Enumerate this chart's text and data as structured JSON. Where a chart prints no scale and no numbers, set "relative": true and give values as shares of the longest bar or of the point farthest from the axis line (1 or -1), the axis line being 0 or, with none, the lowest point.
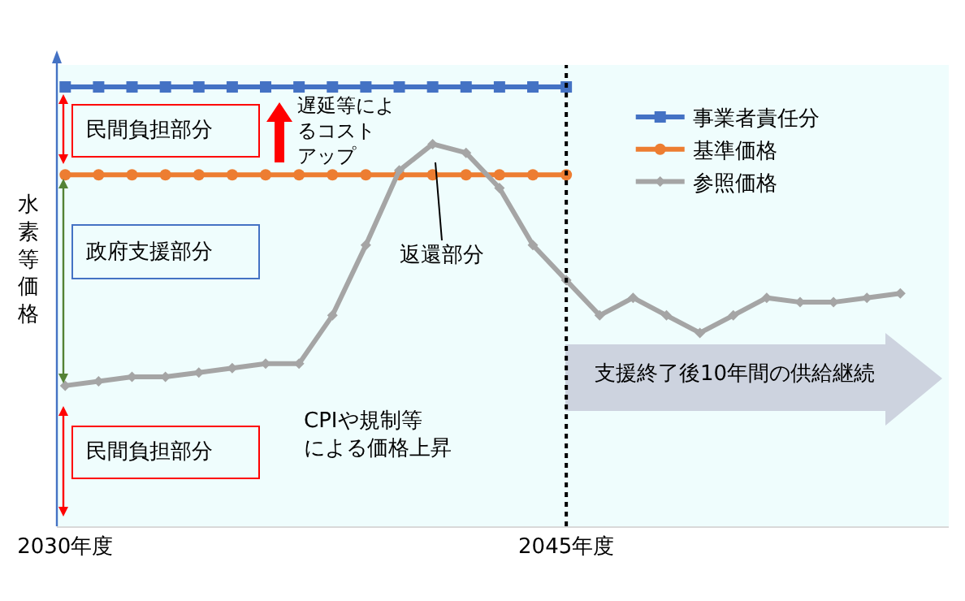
{
  "chart_data": {
    "type": "line",
    "relative": true,
    "ylabel": "水素等価格",
    "categories": [
      "2030年度",
      null,
      null,
      null,
      null,
      null,
      null,
      null,
      null,
      null,
      null,
      null,
      null,
      null,
      null,
      "2045年度",
      null,
      null,
      null,
      null,
      null,
      null,
      null,
      null,
      null,
      null
    ],
    "series": [
      {
        "name": "事業者責任分",
        "color": "#4472c4",
        "marker": "square",
        "values": [
          1,
          1,
          1,
          1,
          1,
          1,
          1,
          1,
          1,
          1,
          1,
          1,
          1,
          1,
          1,
          1,
          null,
          null,
          null,
          null,
          null,
          null,
          null,
          null,
          null,
          null
        ]
      },
      {
        "name": "基準価格",
        "color": "#ed7d31",
        "marker": "circle",
        "values": [
          0.8,
          0.8,
          0.8,
          0.8,
          0.8,
          0.8,
          0.8,
          0.8,
          0.8,
          0.8,
          0.8,
          0.8,
          0.8,
          0.8,
          0.8,
          0.8,
          null,
          null,
          null,
          null,
          null,
          null,
          null,
          null,
          null,
          null
        ]
      },
      {
        "name": "参照価格",
        "color": "#a5a5a5",
        "marker": "diamond",
        "values": [
          0.32,
          0.33,
          0.34,
          0.34,
          0.35,
          0.36,
          0.37,
          0.37,
          0.48,
          0.64,
          0.81,
          0.87,
          0.85,
          0.77,
          0.64,
          0.56,
          0.48,
          0.52,
          0.48,
          0.44,
          0.48,
          0.52,
          0.51,
          0.51,
          0.52,
          0.53
        ]
      }
    ],
    "ref_lines": [
      {
        "axis": "x",
        "value": "2045年度",
        "color": "#000000",
        "line_style": "dotted"
      }
    ],
    "annotations": [
      "民間負担部分",
      "遅延等によるコストアップ",
      "政府支援部分",
      "返還部分",
      "CPIや規制等による価格上昇",
      "民間負担部分",
      "支援終了後10年間の供給継続"
    ],
    "legend": "top right",
    "grid": false
  }
}
